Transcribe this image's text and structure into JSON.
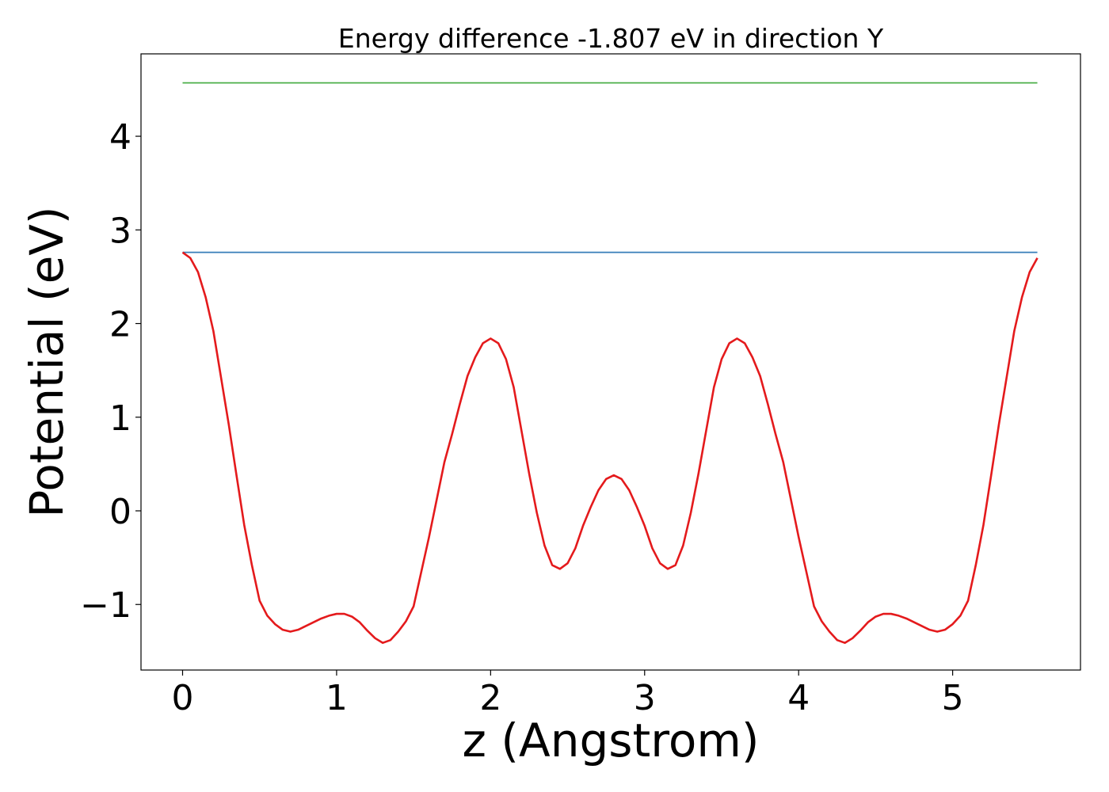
{
  "chart_data": {
    "type": "line",
    "title": "Energy difference -1.807 eV in direction Y",
    "xlabel": "z (Angstrom)",
    "ylabel": "Potential (eV)",
    "xlim": [
      -0.27,
      5.83
    ],
    "ylim": [
      -1.7,
      4.88
    ],
    "xticks": [
      {
        "value": 0,
        "label": "0"
      },
      {
        "value": 1,
        "label": "1"
      },
      {
        "value": 2,
        "label": "2"
      },
      {
        "value": 3,
        "label": "3"
      },
      {
        "value": 4,
        "label": "4"
      },
      {
        "value": 5,
        "label": "5"
      }
    ],
    "yticks": [
      {
        "value": -1,
        "label": "−1"
      },
      {
        "value": 0,
        "label": "0"
      },
      {
        "value": 1,
        "label": "1"
      },
      {
        "value": 2,
        "label": "2"
      },
      {
        "value": 3,
        "label": "3"
      },
      {
        "value": 4,
        "label": "4"
      }
    ],
    "grid": false,
    "legend": "none",
    "colors": {
      "potential": "#e41a1c",
      "fermi": "#377eb8",
      "vacuum": "#4daf4a",
      "frame": "#000000"
    },
    "series": [
      {
        "key": "vacuum",
        "x": [
          0,
          5.55
        ],
        "y": [
          4.57,
          4.57
        ]
      },
      {
        "key": "fermi",
        "x": [
          0,
          5.55
        ],
        "y": [
          2.76,
          2.76
        ]
      },
      {
        "key": "potential",
        "x": [
          0,
          0.05,
          0.1,
          0.15,
          0.2,
          0.25,
          0.3,
          0.35,
          0.4,
          0.45,
          0.5,
          0.55,
          0.6,
          0.65,
          0.7,
          0.75,
          0.8,
          0.85,
          0.9,
          0.95,
          1.0,
          1.05,
          1.1,
          1.15,
          1.2,
          1.25,
          1.3,
          1.35,
          1.4,
          1.45,
          1.5,
          1.55,
          1.6,
          1.65,
          1.7,
          1.75,
          1.8,
          1.85,
          1.9,
          1.95,
          2.0,
          2.05,
          2.1,
          2.15,
          2.2,
          2.25,
          2.3,
          2.35,
          2.4,
          2.45,
          2.5,
          2.55,
          2.6,
          2.65,
          2.7,
          2.75,
          2.8,
          2.85,
          2.9,
          2.95,
          3.0,
          3.05,
          3.1,
          3.15,
          3.2,
          3.25,
          3.3,
          3.35,
          3.4,
          3.45,
          3.5,
          3.55,
          3.6,
          3.65,
          3.7,
          3.75,
          3.8,
          3.85,
          3.9,
          3.95,
          4.0,
          4.05,
          4.1,
          4.15,
          4.2,
          4.25,
          4.3,
          4.35,
          4.4,
          4.45,
          4.5,
          4.55,
          4.6,
          4.65,
          4.7,
          4.75,
          4.8,
          4.85,
          4.9,
          4.95,
          5.0,
          5.05,
          5.1,
          5.15,
          5.2,
          5.25,
          5.3,
          5.35,
          5.4,
          5.45,
          5.5,
          5.55
        ],
        "y": [
          2.76,
          2.7,
          2.55,
          2.28,
          1.92,
          1.42,
          0.92,
          0.38,
          -0.15,
          -0.58,
          -0.96,
          -1.12,
          -1.21,
          -1.27,
          -1.29,
          -1.27,
          -1.23,
          -1.19,
          -1.15,
          -1.12,
          -1.1,
          -1.1,
          -1.13,
          -1.19,
          -1.28,
          -1.36,
          -1.41,
          -1.38,
          -1.29,
          -1.18,
          -1.02,
          -0.65,
          -0.28,
          0.12,
          0.52,
          0.82,
          1.14,
          1.44,
          1.64,
          1.79,
          1.84,
          1.79,
          1.62,
          1.32,
          0.86,
          0.4,
          -0.02,
          -0.37,
          -0.58,
          -0.62,
          -0.56,
          -0.4,
          -0.16,
          0.04,
          0.22,
          0.34,
          0.38,
          0.34,
          0.22,
          0.04,
          -0.16,
          -0.4,
          -0.56,
          -0.62,
          -0.58,
          -0.37,
          -0.02,
          0.4,
          0.86,
          1.32,
          1.62,
          1.79,
          1.84,
          1.79,
          1.64,
          1.44,
          1.14,
          0.82,
          0.52,
          0.12,
          -0.28,
          -0.65,
          -1.02,
          -1.18,
          -1.29,
          -1.38,
          -1.41,
          -1.36,
          -1.28,
          -1.19,
          -1.13,
          -1.1,
          -1.1,
          -1.12,
          -1.15,
          -1.19,
          -1.23,
          -1.27,
          -1.29,
          -1.27,
          -1.21,
          -1.12,
          -0.96,
          -0.58,
          -0.15,
          0.38,
          0.92,
          1.42,
          1.92,
          2.28,
          2.55,
          2.7
        ]
      }
    ]
  }
}
